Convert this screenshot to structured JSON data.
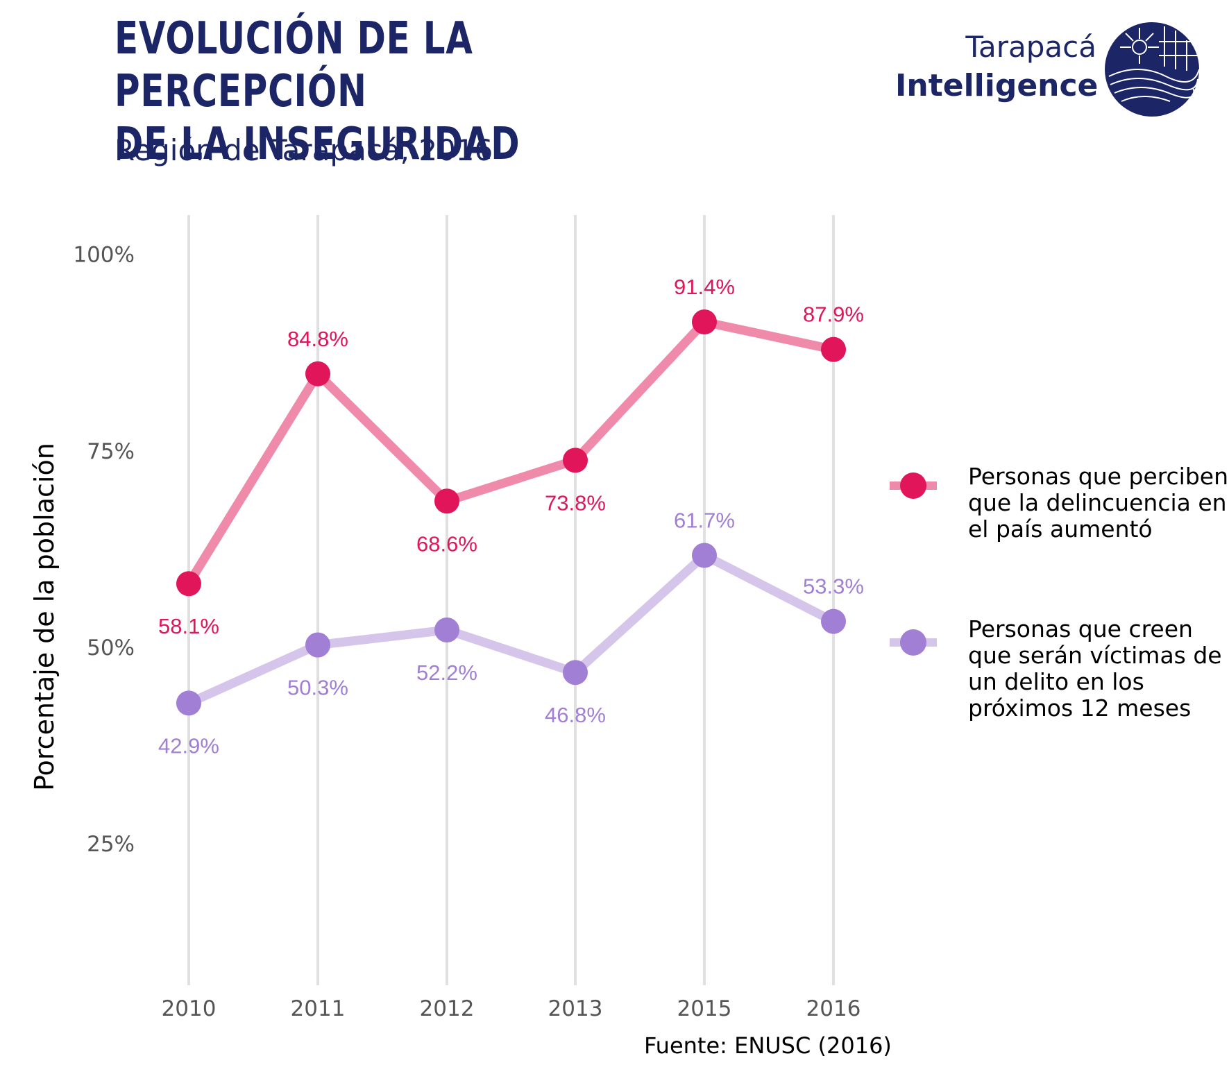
{
  "header": {
    "title_line1": "EVOLUCIÓN DE LA PERCEPCIÓN",
    "title_line2": "DE LA INSEGURIDAD",
    "subtitle": "Región de Tarapacá, 2016"
  },
  "brand": {
    "line1": "Tarapacá",
    "line2": "Intelligence",
    "logo_icon": "compass-sun-wave-logo"
  },
  "source": "Fuente: ENUSC (2016)",
  "colors": {
    "series1_point": "#e0155a",
    "series1_line": "#f08aaa",
    "series2_point": "#a07fd4",
    "series2_line": "#d6c5ea",
    "text_navy": "#1c2565",
    "grid": "#e0e0e0",
    "tick": "#555555"
  },
  "chart_data": {
    "type": "line",
    "title": "",
    "xlabel": "",
    "ylabel": "Porcentaje de la población",
    "categories": [
      "2010",
      "2011",
      "2012",
      "2013",
      "2015",
      "2016"
    ],
    "ylim": [
      0.07,
      1.05
    ],
    "yticks": [
      0.25,
      0.5,
      0.75,
      1.0
    ],
    "ytick_labels": [
      "25%",
      "50%",
      "75%",
      "100%"
    ],
    "grid": "vertical",
    "legend": "right",
    "series": [
      {
        "name": "Personas que perciben que la delincuencia en el país aumentó",
        "values": [
          0.581,
          0.848,
          0.686,
          0.738,
          0.914,
          0.879
        ],
        "labels": [
          "58.1%",
          "84.8%",
          "68.6%",
          "73.8%",
          "91.4%",
          "87.9%"
        ],
        "label_positions": [
          "below",
          "above",
          "below",
          "below",
          "above",
          "above"
        ]
      },
      {
        "name": "Personas que creen que serán víctimas de un delito en los próximos 12 meses",
        "values": [
          0.429,
          0.503,
          0.522,
          0.468,
          0.617,
          0.533
        ],
        "labels": [
          "42.9%",
          "50.3%",
          "52.2%",
          "46.8%",
          "61.7%",
          "53.3%"
        ],
        "label_positions": [
          "below",
          "below",
          "below",
          "below",
          "above",
          "above"
        ]
      }
    ]
  }
}
